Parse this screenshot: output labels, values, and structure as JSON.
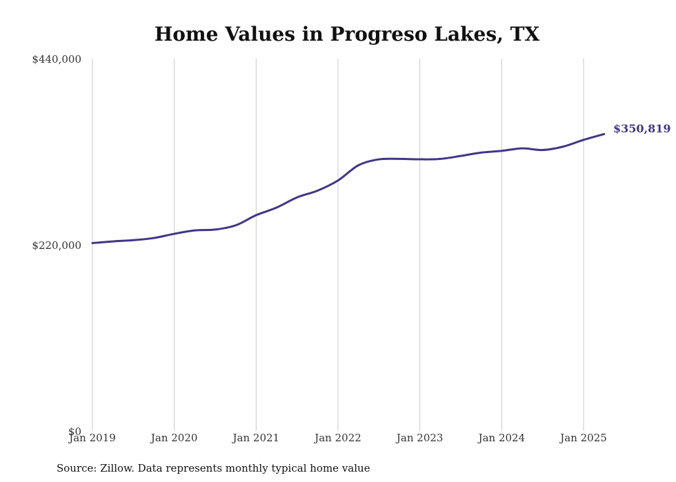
{
  "colors": {
    "series": "#3d3494",
    "grid": "#c8c8c8",
    "text": "#111111",
    "tick": "#333333"
  },
  "chart_data": {
    "type": "line",
    "title": "Home Values in Progreso Lakes, TX",
    "source": "Source: Zillow. Data represents monthly typical home value",
    "xlabel": "",
    "ylabel": "",
    "ylim": [
      0,
      440000
    ],
    "xlim": [
      "2019-01",
      "2025-04"
    ],
    "grid": "vertical",
    "legend": "none",
    "y_ticks": [
      {
        "value": 0,
        "label": "$0"
      },
      {
        "value": 220000,
        "label": "$220,000"
      },
      {
        "value": 440000,
        "label": "$440,000"
      }
    ],
    "x_ticks": [
      {
        "value": "2019-01",
        "label": "Jan 2019"
      },
      {
        "value": "2020-01",
        "label": "Jan 2020"
      },
      {
        "value": "2021-01",
        "label": "Jan 2021"
      },
      {
        "value": "2022-01",
        "label": "Jan 2022"
      },
      {
        "value": "2023-01",
        "label": "Jan 2023"
      },
      {
        "value": "2024-01",
        "label": "Jan 2024"
      },
      {
        "value": "2025-01",
        "label": "Jan 2025"
      }
    ],
    "end_label": "$350,819",
    "series": [
      {
        "values": [
          {
            "x": "2019-01",
            "y": 222000
          },
          {
            "x": "2019-04",
            "y": 224000
          },
          {
            "x": "2019-07",
            "y": 225500
          },
          {
            "x": "2019-10",
            "y": 228000
          },
          {
            "x": "2020-01",
            "y": 233000
          },
          {
            "x": "2020-04",
            "y": 237000
          },
          {
            "x": "2020-07",
            "y": 238000
          },
          {
            "x": "2020-10",
            "y": 243000
          },
          {
            "x": "2021-01",
            "y": 255000
          },
          {
            "x": "2021-04",
            "y": 264000
          },
          {
            "x": "2021-07",
            "y": 276000
          },
          {
            "x": "2021-10",
            "y": 284000
          },
          {
            "x": "2022-01",
            "y": 296000
          },
          {
            "x": "2022-04",
            "y": 314000
          },
          {
            "x": "2022-07",
            "y": 321000
          },
          {
            "x": "2022-10",
            "y": 321500
          },
          {
            "x": "2023-01",
            "y": 321000
          },
          {
            "x": "2023-04",
            "y": 321500
          },
          {
            "x": "2023-07",
            "y": 325000
          },
          {
            "x": "2023-10",
            "y": 329000
          },
          {
            "x": "2024-01",
            "y": 331000
          },
          {
            "x": "2024-04",
            "y": 334000
          },
          {
            "x": "2024-07",
            "y": 332000
          },
          {
            "x": "2024-10",
            "y": 336000
          },
          {
            "x": "2025-01",
            "y": 344000
          },
          {
            "x": "2025-04",
            "y": 350819
          }
        ]
      }
    ]
  }
}
